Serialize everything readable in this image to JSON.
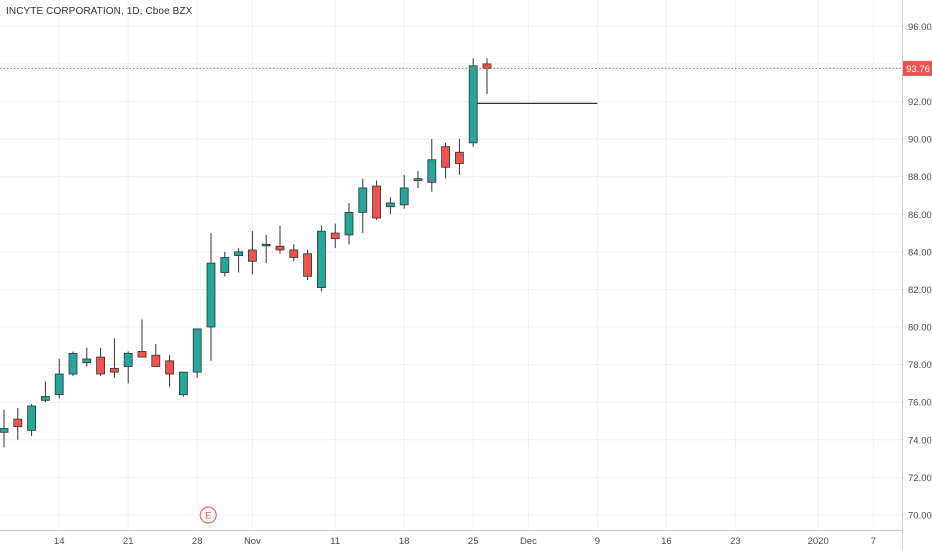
{
  "header": {
    "symbol_label": "INCYTE CORPORATION, 1D, Cboe BZX"
  },
  "colors": {
    "up": "#26a69a",
    "down": "#ef5350",
    "grid": "#eef1f5",
    "axis_text": "#4a4a4a",
    "price_line": "#ef5350",
    "projection_line": "#333333",
    "event_marker": "#ef5350"
  },
  "chart_data": {
    "type": "candlestick",
    "title": "INCYTE CORPORATION, 1D, Cboe BZX",
    "xlabel": "",
    "ylabel": "",
    "ylim": [
      69.2,
      97.4
    ],
    "y_ticks": [
      70,
      72,
      74,
      76,
      78,
      80,
      82,
      84,
      86,
      88,
      90,
      92,
      94,
      96
    ],
    "y_tick_labels": [
      "70.00",
      "72.00",
      "74.00",
      "76.00",
      "78.00",
      "80.00",
      "82.00",
      "84.00",
      "86.00",
      "88.00",
      "90.00",
      "92.00",
      "94.00",
      "96.00"
    ],
    "x_ticks": [
      {
        "index": 4,
        "label": "14"
      },
      {
        "index": 9,
        "label": "21"
      },
      {
        "index": 14,
        "label": "28"
      },
      {
        "index": 18,
        "label": "Nov"
      },
      {
        "index": 24,
        "label": "11"
      },
      {
        "index": 29,
        "label": "18"
      },
      {
        "index": 34,
        "label": "25"
      },
      {
        "index": 38,
        "label": "Dec"
      },
      {
        "index": 43,
        "label": "9"
      },
      {
        "index": 48,
        "label": "16"
      },
      {
        "index": 53,
        "label": "23"
      },
      {
        "index": 59,
        "label": "2020"
      },
      {
        "index": 63,
        "label": "7"
      }
    ],
    "grid": true,
    "candles": [
      {
        "o": 74.4,
        "h": 75.6,
        "l": 73.6,
        "c": 74.6
      },
      {
        "o": 75.1,
        "h": 75.7,
        "l": 74.0,
        "c": 74.7
      },
      {
        "o": 74.5,
        "h": 75.9,
        "l": 74.2,
        "c": 75.8
      },
      {
        "o": 76.1,
        "h": 77.1,
        "l": 76.0,
        "c": 76.3
      },
      {
        "o": 76.4,
        "h": 78.3,
        "l": 76.2,
        "c": 77.5
      },
      {
        "o": 77.5,
        "h": 78.7,
        "l": 77.4,
        "c": 78.6
      },
      {
        "o": 78.1,
        "h": 78.9,
        "l": 77.9,
        "c": 78.3
      },
      {
        "o": 78.4,
        "h": 78.9,
        "l": 77.4,
        "c": 77.5
      },
      {
        "o": 77.8,
        "h": 79.4,
        "l": 77.3,
        "c": 77.6
      },
      {
        "o": 77.9,
        "h": 78.7,
        "l": 77.0,
        "c": 78.6
      },
      {
        "o": 78.7,
        "h": 80.4,
        "l": 78.4,
        "c": 78.4
      },
      {
        "o": 78.5,
        "h": 79.1,
        "l": 77.9,
        "c": 77.9
      },
      {
        "o": 78.2,
        "h": 78.5,
        "l": 76.8,
        "c": 77.5
      },
      {
        "o": 76.4,
        "h": 77.6,
        "l": 76.3,
        "c": 77.6
      },
      {
        "o": 77.6,
        "h": 79.9,
        "l": 77.3,
        "c": 79.9
      },
      {
        "o": 80.0,
        "h": 85.0,
        "l": 78.2,
        "c": 83.4
      },
      {
        "o": 82.9,
        "h": 84.0,
        "l": 82.7,
        "c": 83.7
      },
      {
        "o": 83.8,
        "h": 84.2,
        "l": 82.9,
        "c": 84.0
      },
      {
        "o": 84.1,
        "h": 85.1,
        "l": 82.8,
        "c": 83.5
      },
      {
        "o": 84.4,
        "h": 84.9,
        "l": 83.4,
        "c": 84.4
      },
      {
        "o": 84.3,
        "h": 85.4,
        "l": 83.9,
        "c": 84.1
      },
      {
        "o": 84.1,
        "h": 84.4,
        "l": 83.5,
        "c": 83.7
      },
      {
        "o": 83.9,
        "h": 84.1,
        "l": 82.5,
        "c": 82.7
      },
      {
        "o": 82.1,
        "h": 85.4,
        "l": 81.9,
        "c": 85.1
      },
      {
        "o": 85.0,
        "h": 85.5,
        "l": 84.2,
        "c": 84.7
      },
      {
        "o": 84.9,
        "h": 86.6,
        "l": 84.4,
        "c": 86.1
      },
      {
        "o": 86.1,
        "h": 87.9,
        "l": 85.0,
        "c": 87.4
      },
      {
        "o": 87.5,
        "h": 87.8,
        "l": 85.7,
        "c": 85.8
      },
      {
        "o": 86.4,
        "h": 86.9,
        "l": 86.0,
        "c": 86.6
      },
      {
        "o": 86.5,
        "h": 88.1,
        "l": 86.3,
        "c": 87.4
      },
      {
        "o": 87.9,
        "h": 88.3,
        "l": 87.4,
        "c": 87.8
      },
      {
        "o": 87.7,
        "h": 90.0,
        "l": 87.2,
        "c": 88.9
      },
      {
        "o": 89.6,
        "h": 89.8,
        "l": 87.9,
        "c": 88.5
      },
      {
        "o": 89.3,
        "h": 90.0,
        "l": 88.1,
        "c": 88.7
      },
      {
        "o": 89.8,
        "h": 94.3,
        "l": 89.6,
        "c": 93.9
      },
      {
        "o": 94.0,
        "h": 94.3,
        "l": 92.4,
        "c": 93.76
      }
    ],
    "last_price": 93.76,
    "last_price_label": "93.76",
    "projection": {
      "start_index": 34,
      "end_index": 43,
      "price": 91.9
    },
    "event_marker": {
      "index": 14,
      "label": "E"
    }
  }
}
